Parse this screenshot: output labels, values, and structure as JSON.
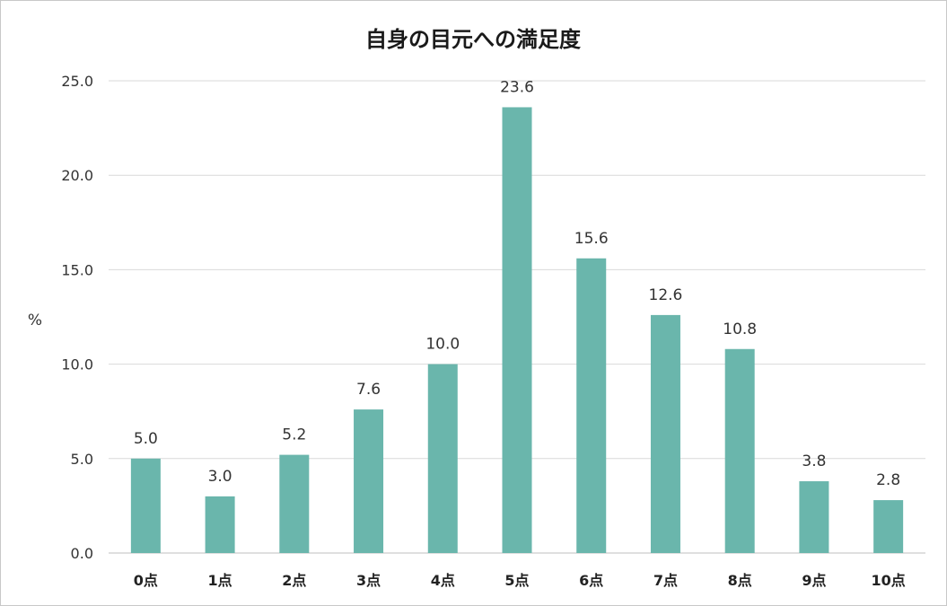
{
  "chart_data": {
    "type": "bar",
    "title": "自身の目元への満足度",
    "ylabel": "%",
    "xlabel": "",
    "ylim": [
      0,
      25
    ],
    "yticks": [
      "0.0",
      "5.0",
      "10.0",
      "15.0",
      "20.0",
      "25.0"
    ],
    "ytick_values": [
      0,
      5,
      10,
      15,
      20,
      25
    ],
    "categories": [
      "0点",
      "1点",
      "2点",
      "3点",
      "4点",
      "5点",
      "6点",
      "7点",
      "8点",
      "9点",
      "10点"
    ],
    "values": [
      5.0,
      3.0,
      5.2,
      7.6,
      10.0,
      23.6,
      15.6,
      12.6,
      10.8,
      3.8,
      2.8
    ],
    "value_labels": [
      "5.0",
      "3.0",
      "5.2",
      "7.6",
      "10.0",
      "23.6",
      "15.6",
      "12.6",
      "10.8",
      "3.8",
      "2.8"
    ],
    "grid": true,
    "legend": "none",
    "bar_color": "#6ab6ac"
  }
}
